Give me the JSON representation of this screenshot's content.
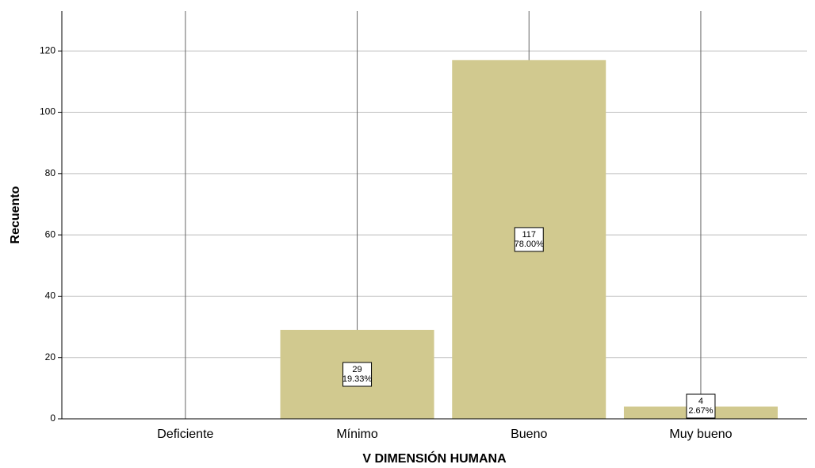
{
  "chart_data": {
    "type": "bar",
    "x_label": "V DIMENSIÓN HUMANA",
    "y_label": "Recuento",
    "categories": [
      "Deficiente",
      "Mínimo",
      "Bueno",
      "Muy bueno"
    ],
    "values": [
      0,
      29,
      117,
      4
    ],
    "value_labels": [
      null,
      "29",
      "117",
      "4"
    ],
    "percents": [
      null,
      19.33,
      78.0,
      2.67
    ],
    "percent_labels": [
      null,
      "19.33%",
      "78.00%",
      "2.67%"
    ],
    "color": "#d1c98f",
    "ylim": [
      0,
      133
    ],
    "yticks": [
      0,
      20,
      40,
      60,
      80,
      100,
      120
    ],
    "grid": true
  }
}
